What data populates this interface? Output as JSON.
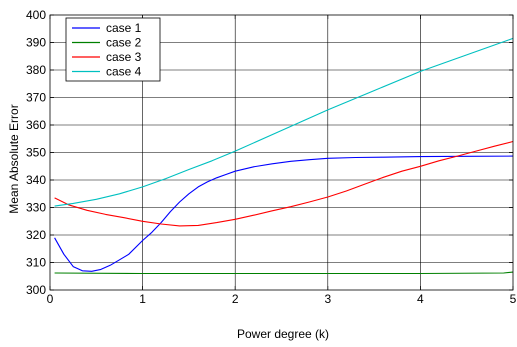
{
  "chart_data": {
    "type": "line",
    "title": "",
    "xlabel": "Power degree (k)",
    "ylabel": "Mean Absolute Error",
    "xlim": [
      0,
      5
    ],
    "ylim": [
      300,
      400
    ],
    "xticks": [
      0,
      1,
      2,
      3,
      4,
      5
    ],
    "yticks": [
      300,
      310,
      320,
      330,
      340,
      350,
      360,
      370,
      380,
      390,
      400
    ],
    "grid": true,
    "legend_position": "top-left",
    "series": [
      {
        "name": "case 1",
        "color": "#0000ff",
        "x": [
          0.05,
          0.15,
          0.25,
          0.35,
          0.45,
          0.55,
          0.65,
          0.75,
          0.85,
          1.0,
          1.1,
          1.2,
          1.3,
          1.4,
          1.5,
          1.6,
          1.7,
          1.8,
          1.9,
          2.0,
          2.2,
          2.4,
          2.6,
          2.8,
          3.0,
          3.3,
          3.6,
          4.0,
          4.5,
          5.0
        ],
        "y": [
          319.0,
          313.0,
          308.5,
          307.0,
          306.8,
          307.5,
          309.0,
          311.0,
          313.0,
          318.0,
          321.0,
          324.5,
          328.5,
          332.0,
          335.0,
          337.5,
          339.3,
          340.8,
          342.0,
          343.2,
          344.8,
          345.9,
          346.8,
          347.4,
          347.9,
          348.2,
          348.3,
          348.5,
          348.6,
          348.7
        ]
      },
      {
        "name": "case 2",
        "color": "#008000",
        "x": [
          0.05,
          1.0,
          2.0,
          3.0,
          4.0,
          4.9,
          5.0
        ],
        "y": [
          306.2,
          306.0,
          306.0,
          306.0,
          306.0,
          306.2,
          306.5
        ]
      },
      {
        "name": "case 3",
        "color": "#ff0000",
        "x": [
          0.05,
          0.2,
          0.4,
          0.6,
          0.8,
          1.0,
          1.2,
          1.4,
          1.6,
          1.8,
          2.0,
          2.2,
          2.4,
          2.6,
          2.8,
          3.0,
          3.2,
          3.4,
          3.6,
          3.8,
          4.0,
          4.2,
          4.4,
          4.6,
          4.8,
          5.0
        ],
        "y": [
          333.5,
          331.0,
          329.0,
          327.5,
          326.3,
          325.0,
          324.0,
          323.3,
          323.5,
          324.5,
          325.7,
          327.2,
          328.8,
          330.3,
          332.0,
          333.8,
          336.0,
          338.5,
          341.0,
          343.2,
          345.0,
          347.0,
          348.7,
          350.5,
          352.3,
          354.0
        ]
      },
      {
        "name": "case 4",
        "color": "#00c0c0",
        "x": [
          0.05,
          0.25,
          0.5,
          0.75,
          1.0,
          1.25,
          1.5,
          1.75,
          2.0,
          2.5,
          3.0,
          3.5,
          4.0,
          4.5,
          5.0
        ],
        "y": [
          330.5,
          331.5,
          333.0,
          335.0,
          337.5,
          340.5,
          343.8,
          347.0,
          350.5,
          358.0,
          365.5,
          372.5,
          379.5,
          385.5,
          391.5
        ]
      }
    ]
  }
}
